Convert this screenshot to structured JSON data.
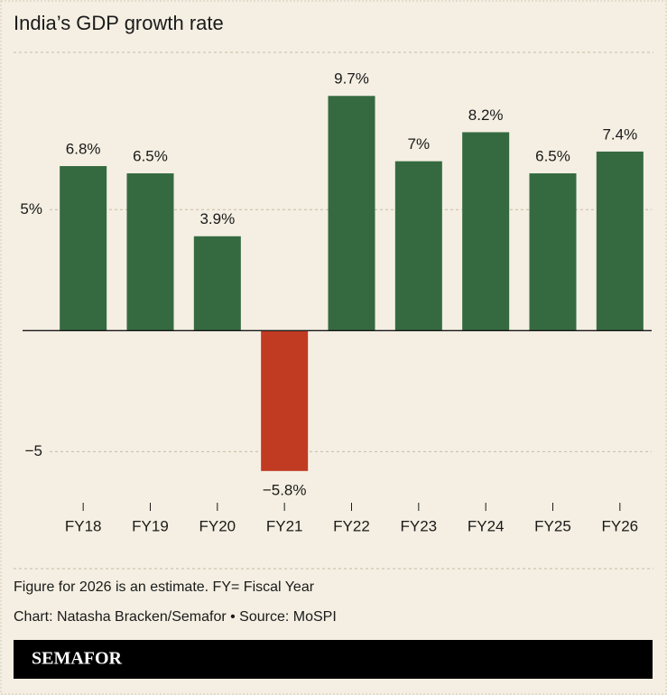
{
  "chart_data": {
    "type": "bar",
    "title": "India’s GDP growth rate",
    "categories": [
      "FY18",
      "FY19",
      "FY20",
      "FY21",
      "FY22",
      "FY23",
      "FY24",
      "FY25",
      "FY26"
    ],
    "values": [
      6.8,
      6.5,
      3.9,
      -5.8,
      9.7,
      7,
      8.2,
      6.5,
      7.4
    ],
    "value_labels": [
      "6.8%",
      "6.5%",
      "3.9%",
      "−5.8%",
      "9.7%",
      "7%",
      "8.2%",
      "6.5%",
      "7.4%"
    ],
    "colors": [
      "#356a41",
      "#356a41",
      "#356a41",
      "#c13a22",
      "#356a41",
      "#356a41",
      "#356a41",
      "#356a41",
      "#356a41"
    ],
    "ylim": [
      -7,
      11.5
    ],
    "yticks": [
      {
        "value": 5,
        "label": "5%"
      },
      {
        "value": -5,
        "label": "−5"
      }
    ],
    "grid": true
  },
  "notes": [
    "Figure for 2026 is an estimate. FY= Fiscal Year",
    "Chart: Natasha Bracken/Semafor • Source: MoSPI"
  ],
  "brand": "SEMAFOR"
}
